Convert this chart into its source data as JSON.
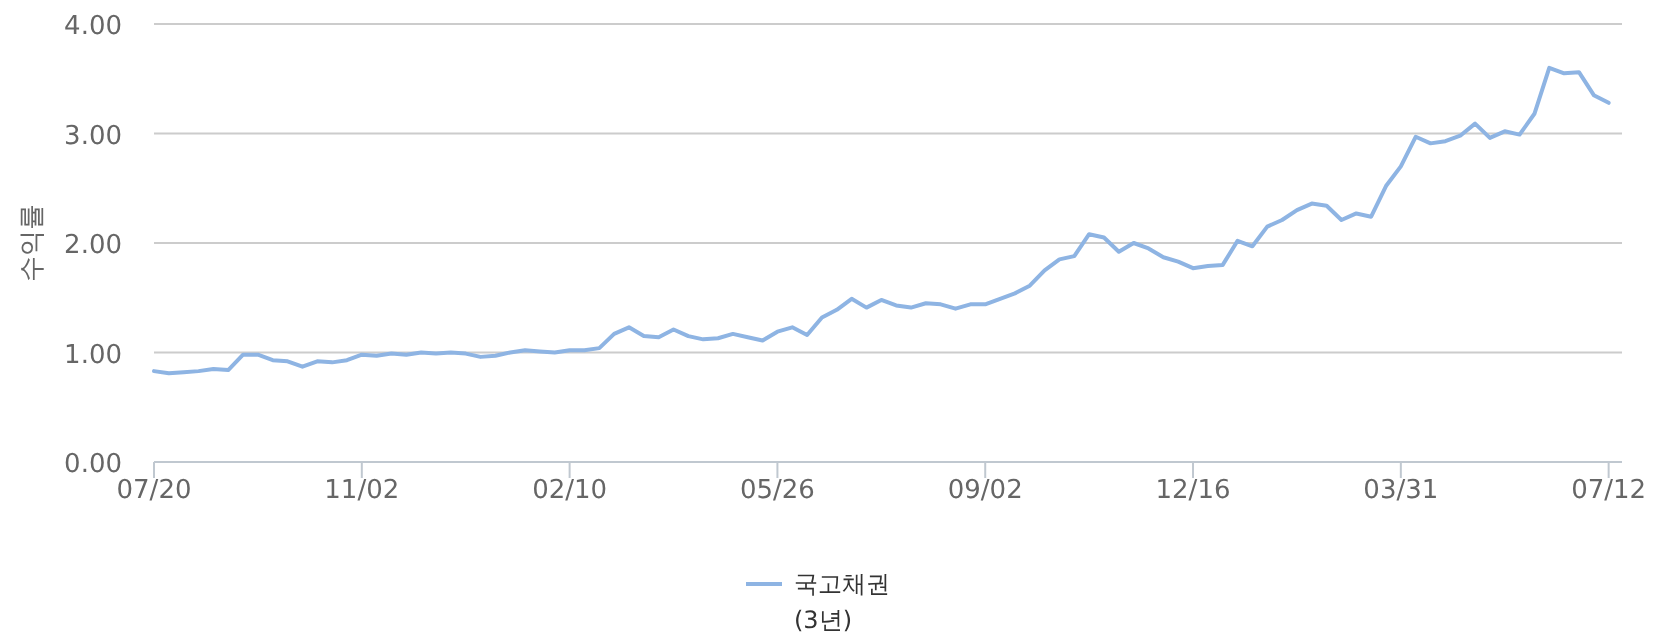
{
  "chart_data": {
    "type": "line",
    "ylabel": "수익률",
    "legend": "bottom",
    "grid": "y",
    "categories": [
      "07/20",
      null,
      null,
      null,
      null,
      null,
      null,
      null,
      null,
      null,
      null,
      null,
      null,
      null,
      "11/02",
      null,
      null,
      null,
      null,
      null,
      null,
      null,
      null,
      null,
      null,
      null,
      null,
      null,
      "02/10",
      null,
      null,
      null,
      null,
      null,
      null,
      null,
      null,
      null,
      null,
      null,
      null,
      null,
      "05/26",
      null,
      null,
      null,
      null,
      null,
      null,
      null,
      null,
      null,
      null,
      null,
      null,
      null,
      "09/02",
      null,
      null,
      null,
      null,
      null,
      null,
      null,
      null,
      null,
      null,
      null,
      null,
      null,
      "12/16",
      null,
      null,
      null,
      null,
      null,
      null,
      null,
      null,
      null,
      null,
      null,
      null,
      null,
      "03/31",
      null,
      null,
      null,
      null,
      null,
      null,
      null,
      null,
      null,
      null,
      null,
      null,
      null,
      "07/12"
    ],
    "ylim": [
      0,
      4
    ],
    "yticks": [
      {
        "value": 0,
        "label": "0.00"
      },
      {
        "value": 1,
        "label": "1.00"
      },
      {
        "value": 2,
        "label": "2.00"
      },
      {
        "value": 3,
        "label": "3.00"
      },
      {
        "value": 4,
        "label": "4.00"
      }
    ],
    "series": [
      {
        "name": "국고채권\n(3년)",
        "color": "#8eb4e3",
        "values": [
          0.83,
          0.81,
          0.82,
          0.83,
          0.85,
          0.84,
          0.98,
          0.98,
          0.93,
          0.92,
          0.87,
          0.92,
          0.91,
          0.93,
          0.98,
          0.97,
          0.99,
          0.98,
          1.0,
          0.99,
          1.0,
          0.99,
          0.96,
          0.97,
          1.0,
          1.02,
          1.01,
          1.0,
          1.02,
          1.02,
          1.04,
          1.17,
          1.23,
          1.15,
          1.14,
          1.21,
          1.15,
          1.12,
          1.13,
          1.17,
          1.14,
          1.11,
          1.19,
          1.23,
          1.16,
          1.32,
          1.39,
          1.49,
          1.41,
          1.48,
          1.43,
          1.41,
          1.45,
          1.44,
          1.4,
          1.44,
          1.44,
          1.49,
          1.54,
          1.61,
          1.75,
          1.85,
          1.88,
          2.08,
          2.05,
          1.92,
          2.0,
          1.95,
          1.87,
          1.83,
          1.77,
          1.79,
          1.8,
          2.02,
          1.97,
          2.15,
          2.21,
          2.3,
          2.36,
          2.34,
          2.21,
          2.27,
          2.24,
          2.52,
          2.7,
          2.97,
          2.91,
          2.93,
          2.98,
          3.09,
          2.96,
          3.02,
          2.99,
          3.18,
          3.6,
          3.55,
          3.56,
          3.35,
          3.28
        ]
      }
    ]
  }
}
